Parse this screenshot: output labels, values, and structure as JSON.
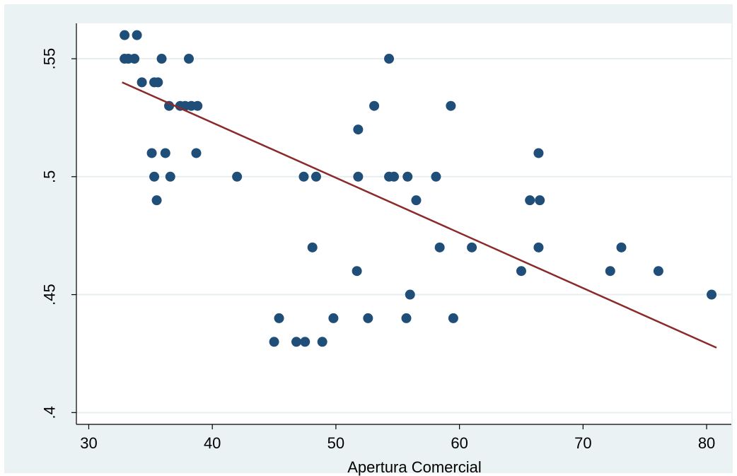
{
  "chart_data": {
    "type": "scatter",
    "title": "",
    "xlabel": "Apertura Comercial",
    "ylabel": "",
    "xlim": [
      29,
      82
    ],
    "ylim": [
      0.395,
      0.565
    ],
    "x_ticks": [
      30,
      40,
      50,
      60,
      70,
      80
    ],
    "x_tick_labels": [
      "30",
      "40",
      "50",
      "60",
      "70",
      "80"
    ],
    "y_ticks": [
      0.4,
      0.45,
      0.5,
      0.55
    ],
    "y_tick_labels": [
      ".4",
      ".45",
      ".5",
      ".55"
    ],
    "grid": "horizontal",
    "colors": {
      "points": "#1f4e79",
      "fit_line": "#8b2a2a",
      "panel_background": "#eaf2f3",
      "plot_background": "#ffffff",
      "grid": "#e6eef0"
    },
    "series": [
      {
        "type": "scatter",
        "points": [
          [
            32.9,
            0.56
          ],
          [
            33.9,
            0.56
          ],
          [
            32.9,
            0.55
          ],
          [
            33.2,
            0.55
          ],
          [
            33.7,
            0.55
          ],
          [
            35.9,
            0.55
          ],
          [
            38.1,
            0.55
          ],
          [
            54.3,
            0.55
          ],
          [
            34.3,
            0.54
          ],
          [
            35.3,
            0.54
          ],
          [
            35.6,
            0.54
          ],
          [
            36.5,
            0.53
          ],
          [
            37.4,
            0.53
          ],
          [
            37.8,
            0.53
          ],
          [
            38.3,
            0.53
          ],
          [
            38.8,
            0.53
          ],
          [
            53.1,
            0.53
          ],
          [
            59.3,
            0.53
          ],
          [
            51.8,
            0.52
          ],
          [
            35.1,
            0.51
          ],
          [
            36.2,
            0.51
          ],
          [
            38.7,
            0.51
          ],
          [
            66.4,
            0.51
          ],
          [
            35.3,
            0.5
          ],
          [
            36.6,
            0.5
          ],
          [
            42.0,
            0.5
          ],
          [
            47.4,
            0.5
          ],
          [
            48.4,
            0.5
          ],
          [
            51.8,
            0.5
          ],
          [
            54.3,
            0.5
          ],
          [
            54.7,
            0.5
          ],
          [
            55.8,
            0.5
          ],
          [
            58.1,
            0.5
          ],
          [
            35.5,
            0.49
          ],
          [
            56.5,
            0.49
          ],
          [
            65.7,
            0.49
          ],
          [
            66.5,
            0.49
          ],
          [
            48.1,
            0.47
          ],
          [
            58.4,
            0.47
          ],
          [
            61.0,
            0.47
          ],
          [
            66.4,
            0.47
          ],
          [
            73.1,
            0.47
          ],
          [
            51.7,
            0.46
          ],
          [
            65.0,
            0.46
          ],
          [
            72.2,
            0.46
          ],
          [
            76.1,
            0.46
          ],
          [
            56.0,
            0.45
          ],
          [
            80.4,
            0.45
          ],
          [
            45.4,
            0.44
          ],
          [
            49.8,
            0.44
          ],
          [
            52.6,
            0.44
          ],
          [
            55.7,
            0.44
          ],
          [
            59.5,
            0.44
          ],
          [
            45.0,
            0.43
          ],
          [
            46.8,
            0.43
          ],
          [
            47.5,
            0.43
          ],
          [
            48.9,
            0.43
          ]
        ]
      },
      {
        "type": "line",
        "points": [
          [
            32.7,
            0.54
          ],
          [
            80.8,
            0.4275
          ]
        ]
      }
    ]
  }
}
